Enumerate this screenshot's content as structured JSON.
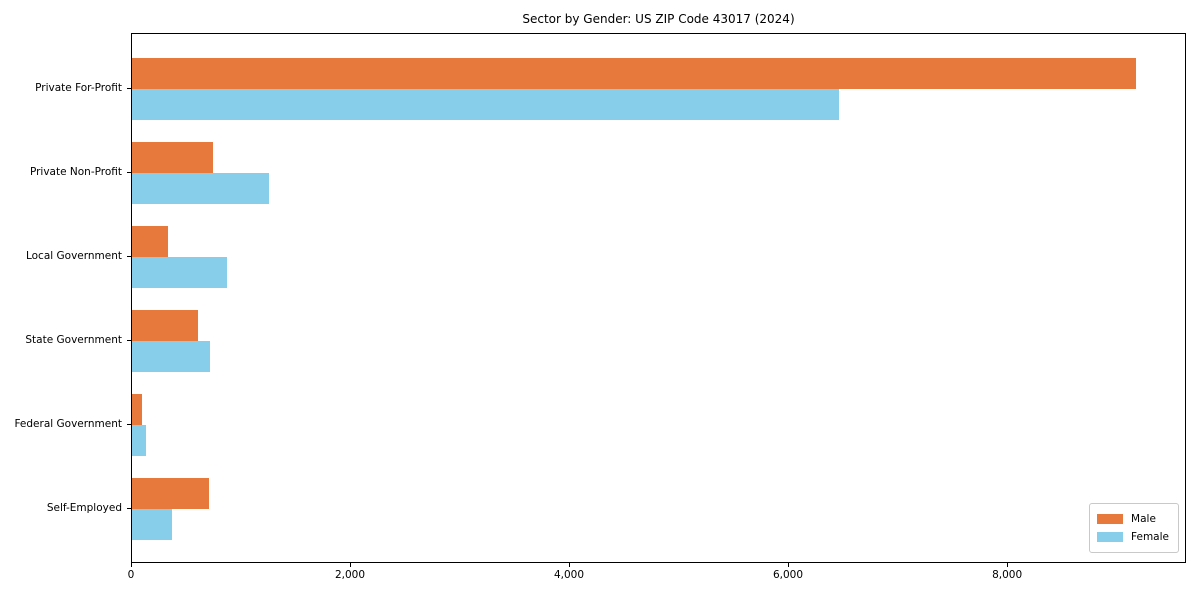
{
  "chart_data": {
    "type": "bar",
    "orientation": "horizontal",
    "title": "Sector by Gender: US ZIP Code 43017 (2024)",
    "categories": [
      "Private For-Profit",
      "Private Non-Profit",
      "Local Government",
      "State Government",
      "Federal Government",
      "Self-Employed"
    ],
    "series": [
      {
        "name": "Male",
        "color": "#e8793c",
        "values": [
          9170,
          743,
          326,
          606,
          88,
          703
        ]
      },
      {
        "name": "Female",
        "color": "#87ceeb",
        "values": [
          6459,
          1255,
          865,
          716,
          130,
          366
        ]
      }
    ],
    "xlim": [
      0,
      9634
    ],
    "xticks": [
      0,
      2000,
      4000,
      6000,
      8000
    ],
    "xtick_labels": [
      "0",
      "2,000",
      "4,000",
      "6,000",
      "8,000"
    ],
    "grid": false,
    "legend_position": "lower right"
  }
}
